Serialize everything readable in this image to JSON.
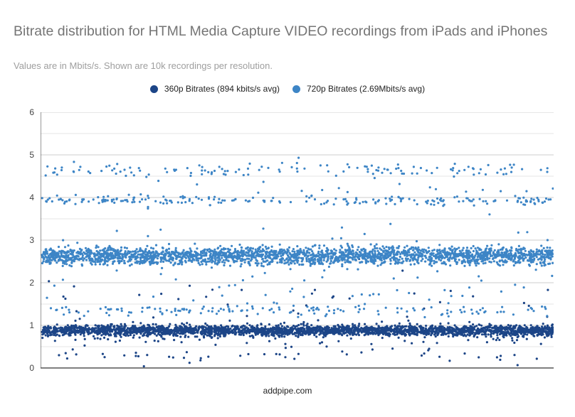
{
  "title": "Bitrate distribution for HTML Media Capture VIDEO recordings from iPads and iPhones",
  "subtitle": "Values are in Mbits/s. Shown are 10k recordings per resolution.",
  "footer": "addpipe.com",
  "legend": [
    {
      "label": "360p Bitrates (894 kbits/s avg)",
      "color": "#1c4587"
    },
    {
      "label": "720p Bitrates (2.69Mbits/s avg)",
      "color": "#3d85c6"
    }
  ],
  "y_ticks": [
    "0",
    "1",
    "2",
    "3",
    "4",
    "5",
    "6"
  ],
  "chart_data": {
    "type": "scatter",
    "title": "Bitrate distribution for HTML Media Capture VIDEO recordings from iPads and iPhones",
    "subtitle": "Values are in Mbits/s. Shown are 10k recordings per resolution.",
    "xlabel": "addpipe.com",
    "ylabel": "",
    "ylim": [
      0,
      6
    ],
    "yticks": [
      0,
      1,
      2,
      3,
      4,
      5,
      6
    ],
    "grid": {
      "horizontal": true,
      "minor_step": 0.5
    },
    "legend_position": "top",
    "points_per_series": 10000,
    "series": [
      {
        "name": "360p Bitrates (894 kbits/s avg)",
        "color": "#1c4587",
        "avg_mbps": 0.894,
        "clusters": [
          {
            "center": 0.88,
            "spread": 0.06,
            "weight": 0.93
          },
          {
            "center": 0.75,
            "spread": 0.15,
            "weight": 0.04
          },
          {
            "center": 0.25,
            "spread": 0.1,
            "weight": 0.015
          },
          {
            "center": 1.5,
            "spread": 0.5,
            "weight": 0.015
          }
        ]
      },
      {
        "name": "720p Bitrates (2.69Mbits/s avg)",
        "color": "#3d85c6",
        "avg_mbps": 2.69,
        "clusters": [
          {
            "center": 2.65,
            "spread": 0.09,
            "weight": 0.72
          },
          {
            "center": 2.48,
            "spread": 0.04,
            "weight": 0.08
          },
          {
            "center": 3.93,
            "spread": 0.05,
            "weight": 0.07
          },
          {
            "center": 4.65,
            "spread": 0.07,
            "weight": 0.04
          },
          {
            "center": 1.35,
            "spread": 0.06,
            "weight": 0.05
          },
          {
            "center": 4.3,
            "spread": 0.3,
            "weight": 0.015
          },
          {
            "center": 2.0,
            "spread": 0.35,
            "weight": 0.02
          },
          {
            "center": 3.1,
            "spread": 0.2,
            "weight": 0.005
          }
        ]
      }
    ]
  }
}
